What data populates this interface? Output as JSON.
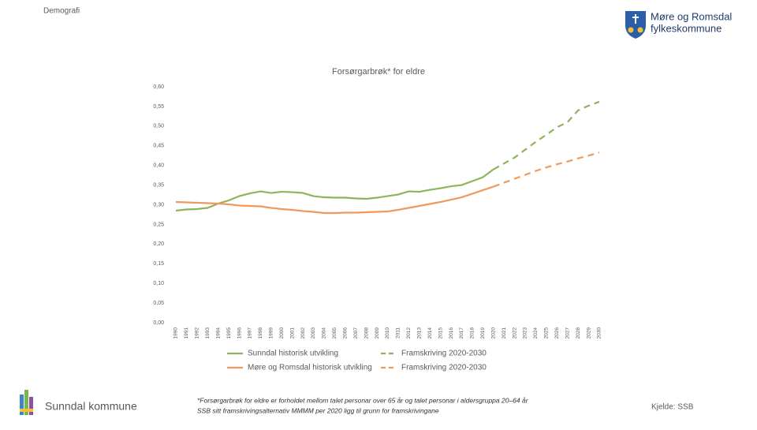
{
  "header": {
    "section": "Demografi",
    "logo_lines": [
      "Møre og Romsdal",
      "fylkeskommune"
    ]
  },
  "footer": {
    "municipality": "Sunndal kommune",
    "source": "Kjelde: SSB",
    "footnote": [
      "*Forsørgarbrøk for eldre er forholdet mellom talet personar over 65 år og talet personar i aldersgruppa 20–64 år",
      "SSB sitt framskrivingsalternativ MMMM per 2020 ligg til grunn for framskrivingane"
    ]
  },
  "chart_data": {
    "type": "line",
    "title": "Forsørgarbrøk* for eldre",
    "categories": [
      "1990",
      "1991",
      "1992",
      "1993",
      "1994",
      "1995",
      "1996",
      "1997",
      "1998",
      "1999",
      "2000",
      "2001",
      "2002",
      "2003",
      "2004",
      "2005",
      "2006",
      "2007",
      "2008",
      "2009",
      "2010",
      "2011",
      "2012",
      "2013",
      "2014",
      "2015",
      "2016",
      "2017",
      "2018",
      "2019",
      "2020",
      "2021",
      "2022",
      "2023",
      "2024",
      "2025",
      "2026",
      "2027",
      "2028",
      "2029",
      "2030"
    ],
    "ylim": [
      0,
      0.6
    ],
    "yticks": [
      {
        "value": 0,
        "label": "0,00"
      },
      {
        "value": 0.05,
        "label": "0,05"
      },
      {
        "value": 0.1,
        "label": "0,10"
      },
      {
        "value": 0.15,
        "label": "0,15"
      },
      {
        "value": 0.2,
        "label": "0,20"
      },
      {
        "value": 0.25,
        "label": "0,25"
      },
      {
        "value": 0.3,
        "label": "0,30"
      },
      {
        "value": 0.35,
        "label": "0,35"
      },
      {
        "value": 0.4,
        "label": "0,40"
      },
      {
        "value": 0.45,
        "label": "0,45"
      },
      {
        "value": 0.5,
        "label": "0,50"
      },
      {
        "value": 0.55,
        "label": "0,55"
      },
      {
        "value": 0.6,
        "label": "0,60"
      }
    ],
    "grid": false,
    "series": [
      {
        "name": "Sunndal historisk utvikling",
        "color": "#8db45a",
        "dashed": false,
        "values": [
          0.285,
          0.288,
          0.289,
          0.292,
          0.303,
          0.311,
          0.322,
          0.329,
          0.334,
          0.33,
          0.333,
          0.332,
          0.33,
          0.322,
          0.319,
          0.318,
          0.318,
          0.316,
          0.315,
          0.318,
          0.322,
          0.326,
          0.334,
          0.333,
          0.338,
          0.342,
          0.347,
          0.35,
          0.36,
          0.37,
          0.39,
          null,
          null,
          null,
          null,
          null,
          null,
          null,
          null,
          null,
          null
        ]
      },
      {
        "name": "Framskriving 2020-2030",
        "color": "#8db45a",
        "dashed": true,
        "values": [
          null,
          null,
          null,
          null,
          null,
          null,
          null,
          null,
          null,
          null,
          null,
          null,
          null,
          null,
          null,
          null,
          null,
          null,
          null,
          null,
          null,
          null,
          null,
          null,
          null,
          null,
          null,
          null,
          null,
          null,
          0.39,
          0.405,
          0.42,
          0.44,
          0.46,
          0.478,
          0.497,
          0.51,
          0.54,
          0.552,
          0.562
        ]
      },
      {
        "name": "Møre og Romsdal historisk utvikling",
        "color": "#ee9a5c",
        "dashed": false,
        "values": [
          0.307,
          0.306,
          0.305,
          0.304,
          0.303,
          0.301,
          0.298,
          0.297,
          0.296,
          0.292,
          0.289,
          0.287,
          0.284,
          0.282,
          0.279,
          0.279,
          0.28,
          0.28,
          0.281,
          0.282,
          0.283,
          0.287,
          0.292,
          0.297,
          0.302,
          0.307,
          0.313,
          0.319,
          0.328,
          0.337,
          0.346,
          null,
          null,
          null,
          null,
          null,
          null,
          null,
          null,
          null,
          null
        ]
      },
      {
        "name": "Framskriving 2020-2030",
        "color": "#ee9a5c",
        "dashed": true,
        "values": [
          null,
          null,
          null,
          null,
          null,
          null,
          null,
          null,
          null,
          null,
          null,
          null,
          null,
          null,
          null,
          null,
          null,
          null,
          null,
          null,
          null,
          null,
          null,
          null,
          null,
          null,
          null,
          null,
          null,
          null,
          0.346,
          0.356,
          0.366,
          0.376,
          0.386,
          0.395,
          0.403,
          0.41,
          0.418,
          0.425,
          0.433
        ]
      }
    ]
  }
}
